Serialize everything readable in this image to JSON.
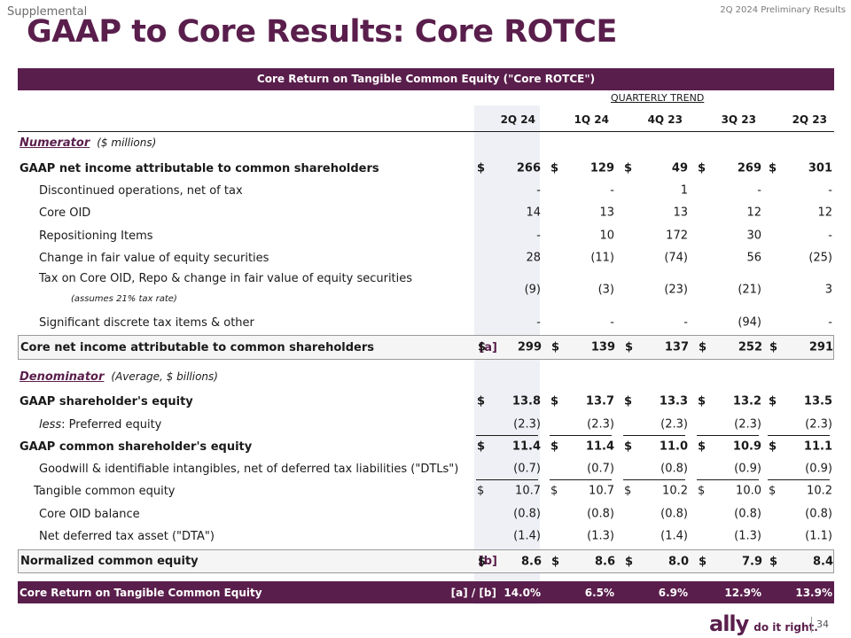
{
  "header": {
    "supplemental": "Supplemental",
    "preliminary": "2Q 2024 Preliminary Results",
    "title": "GAAP to Core Results: Core ROTCE"
  },
  "banner": "Core Return on Tangible Common Equity (\"Core ROTCE\")",
  "quarterly_trend": "QUARTERLY TREND",
  "columns": [
    "2Q 24",
    "1Q 24",
    "4Q 23",
    "3Q 23",
    "2Q 23"
  ],
  "numerator": {
    "name": "Numerator",
    "unit": "($ millions)"
  },
  "denominator": {
    "name": "Denominator",
    "unit": "(Average, $ billions)"
  },
  "rows": {
    "gaap_ni": {
      "label": "GAAP net income attributable to common shareholders",
      "values": [
        "266",
        "129",
        "49",
        "269",
        "301"
      ]
    },
    "disc_ops": {
      "label": "Discontinued operations, net of tax",
      "values": [
        "-",
        "-",
        "1",
        "-",
        "-"
      ]
    },
    "core_oid": {
      "label": "Core OID",
      "values": [
        "14",
        "13",
        "13",
        "12",
        "12"
      ]
    },
    "repositioning": {
      "label": "Repositioning Items",
      "values": [
        "-",
        "10",
        "172",
        "30",
        "-"
      ]
    },
    "fair_value": {
      "label": "Change in fair value of equity securities",
      "values": [
        "28",
        "(11)",
        "(74)",
        "56",
        "(25)"
      ]
    },
    "tax": {
      "label": "Tax on Core OID, Repo & change in fair value of equity securities",
      "note": "(assumes 21% tax rate)",
      "values": [
        "(9)",
        "(3)",
        "(23)",
        "(21)",
        "3"
      ]
    },
    "discrete_tax": {
      "label": "Significant discrete tax items & other",
      "values": [
        "-",
        "-",
        "-",
        "(94)",
        "-"
      ]
    },
    "core_ni": {
      "label": "Core net income attributable to common shareholders",
      "ref": "[a]",
      "values": [
        "299",
        "139",
        "137",
        "252",
        "291"
      ]
    },
    "gaap_equity": {
      "label": "GAAP shareholder's equity",
      "values": [
        "13.8",
        "13.7",
        "13.3",
        "13.2",
        "13.5"
      ]
    },
    "preferred": {
      "label_prefix": "less",
      "label": ":  Preferred equity",
      "values": [
        "(2.3)",
        "(2.3)",
        "(2.3)",
        "(2.3)",
        "(2.3)"
      ]
    },
    "gaap_common": {
      "label": "GAAP common shareholder's equity",
      "values": [
        "11.4",
        "11.4",
        "11.0",
        "10.9",
        "11.1"
      ]
    },
    "goodwill": {
      "label": "Goodwill & identifiable intangibles, net of deferred tax liabilities (\"DTLs\")",
      "values": [
        "(0.7)",
        "(0.7)",
        "(0.8)",
        "(0.9)",
        "(0.9)"
      ]
    },
    "tangible": {
      "label": "Tangible common equity",
      "values": [
        "10.7",
        "10.7",
        "10.2",
        "10.0",
        "10.2"
      ]
    },
    "oid_balance": {
      "label": "Core OID balance",
      "values": [
        "(0.8)",
        "(0.8)",
        "(0.8)",
        "(0.8)",
        "(0.8)"
      ]
    },
    "dta": {
      "label": "Net deferred tax asset (\"DTA\")",
      "values": [
        "(1.4)",
        "(1.3)",
        "(1.4)",
        "(1.3)",
        "(1.1)"
      ]
    },
    "normalized": {
      "label": "Normalized common equity",
      "ref": "[b]",
      "values": [
        "8.6",
        "8.6",
        "8.0",
        "7.9",
        "8.4"
      ]
    },
    "rotce": {
      "label": "Core Return on Tangible Common Equity",
      "ref": "[a] / [b]",
      "values": [
        "14.0%",
        "6.5%",
        "6.9%",
        "12.9%",
        "13.9%"
      ]
    }
  },
  "dollar": "$",
  "footer": {
    "brand": "ally",
    "tagline": "do it right.",
    "page": "34"
  }
}
